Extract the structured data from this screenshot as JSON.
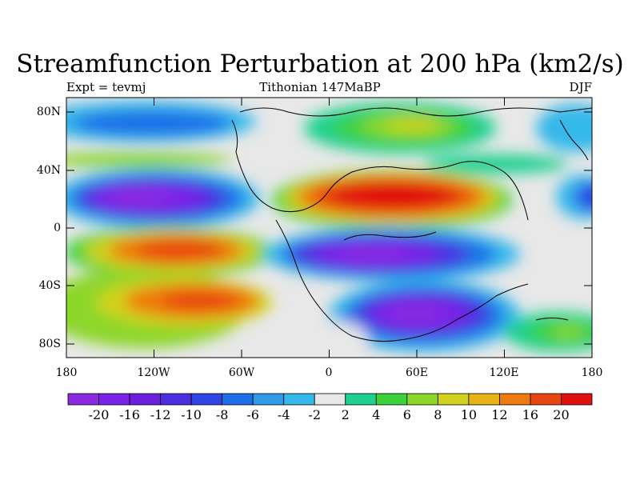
{
  "title": "Streamfunction Perturbation at 200 hPa (km2/s)",
  "subtitle_left": "Expt = tevmj",
  "subtitle_center": "Tithonian 147MaBP",
  "subtitle_right": "DJF",
  "map": {
    "projection": "cylindrical equidistant",
    "lon_range": [
      -180,
      180
    ],
    "lat_range": [
      -90,
      90
    ],
    "lat_ticks": [
      "80N",
      "40N",
      "0",
      "40S",
      "80S"
    ],
    "lon_ticks": [
      "180",
      "120W",
      "60W",
      "0",
      "60E",
      "120E",
      "180"
    ]
  },
  "colorbar": {
    "labels": [
      "-20",
      "-16",
      "-12",
      "-10",
      "-8",
      "-6",
      "-4",
      "-2",
      "2",
      "4",
      "6",
      "8",
      "10",
      "12",
      "16",
      "20"
    ],
    "colors": [
      "#8a2be2",
      "#7a22e6",
      "#6a1fdc",
      "#4b2ee0",
      "#2f45e6",
      "#1e6ee8",
      "#2f9ae8",
      "#34b8ea",
      "#e8e8e8",
      "#1fd090",
      "#3cd23c",
      "#8cd62a",
      "#d2d21e",
      "#e6b418",
      "#ee7a10",
      "#e84610",
      "#e01010"
    ]
  },
  "chart_data": {
    "type": "heatmap",
    "title": "Streamfunction Perturbation at 200 hPa (km2/s)",
    "field": "streamfunction perturbation",
    "level": "200 hPa",
    "units": "km2/s",
    "season": "DJF",
    "experiment": "tevmj",
    "period": "Tithonian 147MaBP",
    "contour_levels": [
      -20,
      -16,
      -12,
      -10,
      -8,
      -6,
      -4,
      -2,
      2,
      4,
      6,
      8,
      10,
      12,
      16,
      20
    ],
    "features": [
      {
        "lon": -120,
        "lat": 22,
        "value": -20
      },
      {
        "lon": -110,
        "lat": -15,
        "value": 16
      },
      {
        "lon": -90,
        "lat": -52,
        "value": 16
      },
      {
        "lon": 50,
        "lat": 22,
        "value": 20
      },
      {
        "lon": 55,
        "lat": 72,
        "value": 10
      },
      {
        "lon": 40,
        "lat": -18,
        "value": -20
      },
      {
        "lon": 60,
        "lat": -60,
        "value": -20
      },
      {
        "lon": -110,
        "lat": 70,
        "value": -6
      },
      {
        "lon": 170,
        "lat": 20,
        "value": -10
      },
      {
        "lon": 150,
        "lat": -68,
        "value": 8
      }
    ]
  }
}
